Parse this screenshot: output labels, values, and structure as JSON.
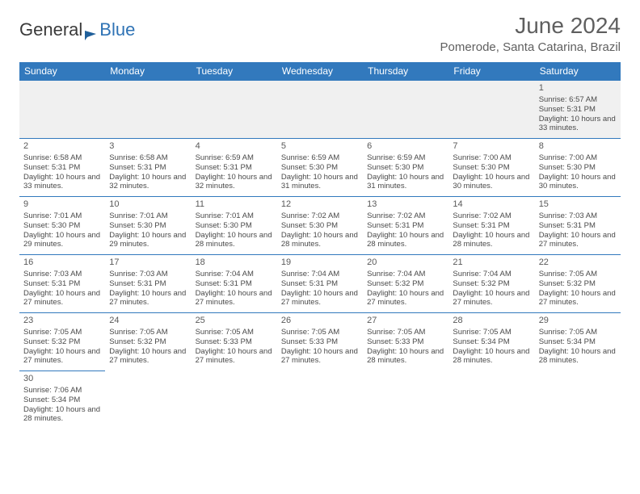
{
  "brand": {
    "part1": "General",
    "part2": "Blue"
  },
  "title": "June 2024",
  "location": "Pomerode, Santa Catarina, Brazil",
  "colors": {
    "header_bg": "#3279bd",
    "header_text": "#ffffff",
    "brand_blue": "#2f73b5",
    "text": "#4a4a4a",
    "title_text": "#5f5f5f",
    "row_border": "#3279bd",
    "empty_bg": "#f0f0f0"
  },
  "typography": {
    "month_title_fontsize": 28,
    "location_fontsize": 15,
    "dayheader_fontsize": 12,
    "cell_fontsize": 9.5
  },
  "dayHeaders": [
    "Sunday",
    "Monday",
    "Tuesday",
    "Wednesday",
    "Thursday",
    "Friday",
    "Saturday"
  ],
  "weeks": [
    [
      null,
      null,
      null,
      null,
      null,
      null,
      {
        "n": "1",
        "sr": "6:57 AM",
        "ss": "5:31 PM",
        "dl": "10 hours and 33 minutes."
      }
    ],
    [
      {
        "n": "2",
        "sr": "6:58 AM",
        "ss": "5:31 PM",
        "dl": "10 hours and 33 minutes."
      },
      {
        "n": "3",
        "sr": "6:58 AM",
        "ss": "5:31 PM",
        "dl": "10 hours and 32 minutes."
      },
      {
        "n": "4",
        "sr": "6:59 AM",
        "ss": "5:31 PM",
        "dl": "10 hours and 32 minutes."
      },
      {
        "n": "5",
        "sr": "6:59 AM",
        "ss": "5:30 PM",
        "dl": "10 hours and 31 minutes."
      },
      {
        "n": "6",
        "sr": "6:59 AM",
        "ss": "5:30 PM",
        "dl": "10 hours and 31 minutes."
      },
      {
        "n": "7",
        "sr": "7:00 AM",
        "ss": "5:30 PM",
        "dl": "10 hours and 30 minutes."
      },
      {
        "n": "8",
        "sr": "7:00 AM",
        "ss": "5:30 PM",
        "dl": "10 hours and 30 minutes."
      }
    ],
    [
      {
        "n": "9",
        "sr": "7:01 AM",
        "ss": "5:30 PM",
        "dl": "10 hours and 29 minutes."
      },
      {
        "n": "10",
        "sr": "7:01 AM",
        "ss": "5:30 PM",
        "dl": "10 hours and 29 minutes."
      },
      {
        "n": "11",
        "sr": "7:01 AM",
        "ss": "5:30 PM",
        "dl": "10 hours and 28 minutes."
      },
      {
        "n": "12",
        "sr": "7:02 AM",
        "ss": "5:30 PM",
        "dl": "10 hours and 28 minutes."
      },
      {
        "n": "13",
        "sr": "7:02 AM",
        "ss": "5:31 PM",
        "dl": "10 hours and 28 minutes."
      },
      {
        "n": "14",
        "sr": "7:02 AM",
        "ss": "5:31 PM",
        "dl": "10 hours and 28 minutes."
      },
      {
        "n": "15",
        "sr": "7:03 AM",
        "ss": "5:31 PM",
        "dl": "10 hours and 27 minutes."
      }
    ],
    [
      {
        "n": "16",
        "sr": "7:03 AM",
        "ss": "5:31 PM",
        "dl": "10 hours and 27 minutes."
      },
      {
        "n": "17",
        "sr": "7:03 AM",
        "ss": "5:31 PM",
        "dl": "10 hours and 27 minutes."
      },
      {
        "n": "18",
        "sr": "7:04 AM",
        "ss": "5:31 PM",
        "dl": "10 hours and 27 minutes."
      },
      {
        "n": "19",
        "sr": "7:04 AM",
        "ss": "5:31 PM",
        "dl": "10 hours and 27 minutes."
      },
      {
        "n": "20",
        "sr": "7:04 AM",
        "ss": "5:32 PM",
        "dl": "10 hours and 27 minutes."
      },
      {
        "n": "21",
        "sr": "7:04 AM",
        "ss": "5:32 PM",
        "dl": "10 hours and 27 minutes."
      },
      {
        "n": "22",
        "sr": "7:05 AM",
        "ss": "5:32 PM",
        "dl": "10 hours and 27 minutes."
      }
    ],
    [
      {
        "n": "23",
        "sr": "7:05 AM",
        "ss": "5:32 PM",
        "dl": "10 hours and 27 minutes."
      },
      {
        "n": "24",
        "sr": "7:05 AM",
        "ss": "5:32 PM",
        "dl": "10 hours and 27 minutes."
      },
      {
        "n": "25",
        "sr": "7:05 AM",
        "ss": "5:33 PM",
        "dl": "10 hours and 27 minutes."
      },
      {
        "n": "26",
        "sr": "7:05 AM",
        "ss": "5:33 PM",
        "dl": "10 hours and 27 minutes."
      },
      {
        "n": "27",
        "sr": "7:05 AM",
        "ss": "5:33 PM",
        "dl": "10 hours and 28 minutes."
      },
      {
        "n": "28",
        "sr": "7:05 AM",
        "ss": "5:34 PM",
        "dl": "10 hours and 28 minutes."
      },
      {
        "n": "29",
        "sr": "7:05 AM",
        "ss": "5:34 PM",
        "dl": "10 hours and 28 minutes."
      }
    ],
    [
      {
        "n": "30",
        "sr": "7:06 AM",
        "ss": "5:34 PM",
        "dl": "10 hours and 28 minutes."
      },
      null,
      null,
      null,
      null,
      null,
      null
    ]
  ],
  "labels": {
    "sunrise": "Sunrise:",
    "sunset": "Sunset:",
    "daylight": "Daylight:"
  }
}
